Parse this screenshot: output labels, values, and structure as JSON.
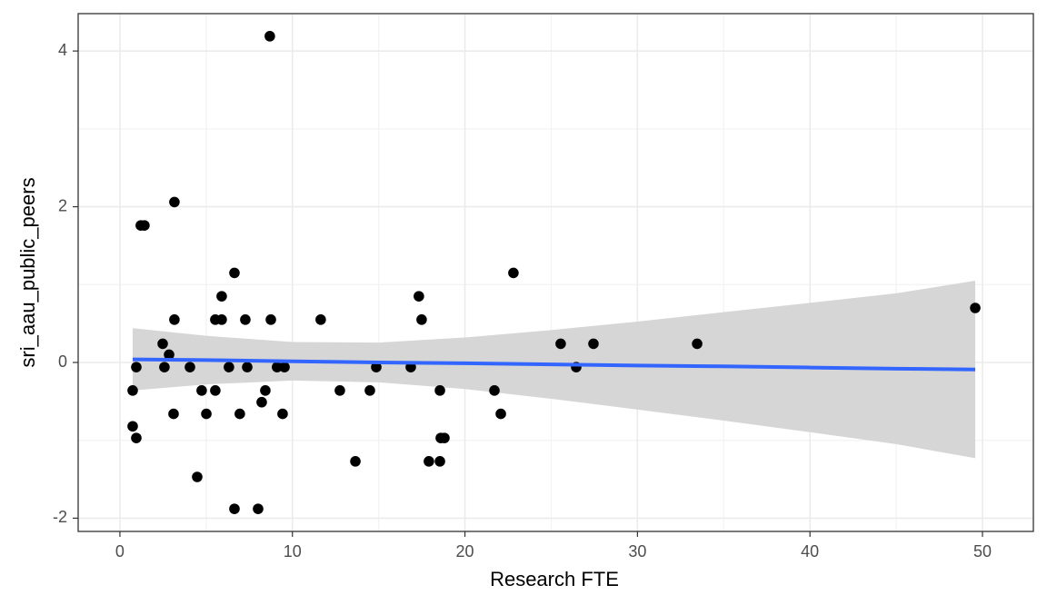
{
  "chart_data": {
    "type": "scatter",
    "x_label": "Research FTE",
    "y_label": "sri_aau_public_peers",
    "x": [
      8.69,
      3.16,
      1.21,
      1.42,
      6.64,
      22.81,
      5.9,
      17.33,
      49.58,
      3.16,
      5.53,
      5.9,
      7.27,
      8.75,
      11.64,
      17.49,
      2.48,
      25.55,
      27.45,
      33.46,
      2.85,
      0.95,
      2.58,
      4.06,
      6.32,
      7.38,
      9.11,
      9.54,
      14.86,
      16.86,
      26.45,
      0.74,
      4.74,
      5.53,
      8.43,
      12.75,
      14.49,
      18.55,
      21.71,
      8.22,
      0.74,
      3.11,
      5.01,
      6.95,
      9.43,
      22.08,
      0.95,
      18.6,
      18.81,
      13.65,
      17.91,
      18.55,
      4.48,
      6.64,
      8.01
    ],
    "y": [
      4.19,
      2.06,
      1.76,
      1.76,
      1.15,
      1.15,
      0.85,
      0.85,
      0.7,
      0.55,
      0.55,
      0.55,
      0.55,
      0.55,
      0.55,
      0.55,
      0.24,
      0.24,
      0.24,
      0.24,
      0.1,
      -0.06,
      -0.06,
      -0.06,
      -0.06,
      -0.06,
      -0.06,
      -0.06,
      -0.06,
      -0.06,
      -0.06,
      -0.36,
      -0.36,
      -0.36,
      -0.36,
      -0.36,
      -0.36,
      -0.36,
      -0.36,
      -0.51,
      -0.82,
      -0.66,
      -0.66,
      -0.66,
      -0.66,
      -0.66,
      -0.97,
      -0.97,
      -0.97,
      -1.27,
      -1.27,
      -1.27,
      -1.47,
      -1.88,
      -1.88
    ],
    "color": "#000000",
    "smooth": {
      "x": [
        0.74,
        5,
        10,
        15,
        20,
        25,
        30,
        35,
        40,
        45,
        49.58
      ],
      "y": [
        0.04,
        0.03,
        0.015,
        0.0,
        -0.01,
        -0.025,
        -0.04,
        -0.05,
        -0.065,
        -0.08,
        -0.09
      ],
      "ymin": [
        -0.36,
        -0.282,
        -0.232,
        -0.255,
        -0.341,
        -0.466,
        -0.605,
        -0.746,
        -0.896,
        -1.048,
        -1.23
      ],
      "ymax": [
        0.44,
        0.342,
        0.262,
        0.255,
        0.321,
        0.416,
        0.525,
        0.646,
        0.766,
        0.888,
        1.05
      ],
      "color": "#3366ff",
      "fill": "#d4d4d4"
    },
    "xlim": [
      -2.42,
      52.95
    ],
    "ylim": [
      -2.17,
      4.48
    ],
    "xticks": [
      0,
      10,
      20,
      30,
      40,
      50
    ],
    "yticks": [
      -2,
      0,
      2,
      4
    ],
    "grid": true
  }
}
